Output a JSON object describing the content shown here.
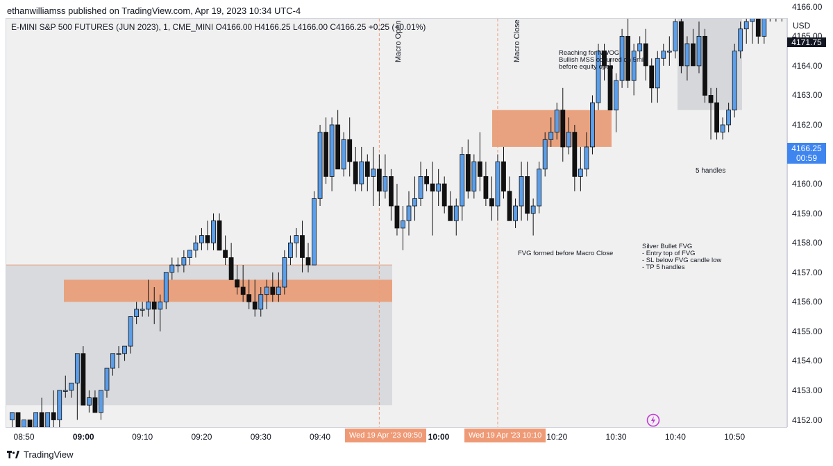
{
  "publisher": "ethanwilliamss published on TradingView.com, Apr 19, 2023 10:34 UTC-4",
  "symbol_info": "E-MINI S&P 500 FUTURES (JUN 2023), 1, CME_MINI  O4166.00  H4166.25  L4166.00  C4166.25  +0.25 (+0.01%)",
  "currency": "USD",
  "footer_brand": "TradingView",
  "colors": {
    "bull": "#5b9ee9",
    "bear": "#111111",
    "fvg": "#e9a27f",
    "zone": "#d6d7db",
    "macro_line": "#ef9a76",
    "price_tag": "#3e85ef"
  },
  "annotations": {
    "macro_open": "Macro Open",
    "macro_close": "Macro Close",
    "nwog_note": [
      "Reaching for NWOG",
      "Bullish MSS occurred on 5min",
      "before equity open"
    ],
    "fvg_note": "FVG formed before Macro Close",
    "silver_bullet": [
      "Silver Bullet FVG",
      "- Entry top of FVG",
      "- SL below FVG candle low",
      "- TP 5 handles"
    ],
    "target_box": "5 handles"
  },
  "flags": [
    "Wed 19 Apr '23   09:50",
    "Wed 19 Apr '23   10:10"
  ],
  "price_tags": {
    "level": "4171.75",
    "last": "4166.25",
    "countdown": "00:59"
  },
  "chart_data": {
    "type": "candlestick",
    "title": "E-MINI S&P 500 FUTURES (JUN 2023), 1, CME_MINI",
    "ylim": [
      4151.5,
      4173
    ],
    "y_ticks": [
      "4152.00",
      "4153.00",
      "4154.00",
      "4155.00",
      "4156.00",
      "4157.00",
      "4158.00",
      "4159.00",
      "4160.00",
      "4161.00",
      "4162.00",
      "4163.00",
      "4164.00",
      "4165.00",
      "4166.00",
      "4167.00",
      "4168.00",
      "4169.00",
      "4170.00",
      "4171.00",
      "4172.00"
    ],
    "x_ticks": [
      "08:50",
      "09:00",
      "09:10",
      "09:20",
      "09:30",
      "09:40",
      "09:50",
      "10:00",
      "10:10",
      "10:20",
      "10:30",
      "10:40",
      "10:50"
    ],
    "x_start": "08:48",
    "horizontal_line": 4171.75,
    "ohlc": [
      [
        4152.0,
        4152.25,
        4151.75,
        4152.25
      ],
      [
        4152.25,
        4152.25,
        4151.75,
        4151.75
      ],
      [
        4151.75,
        4152.0,
        4151.75,
        4152.0
      ],
      [
        4152.0,
        4152.0,
        4151.75,
        4151.75
      ],
      [
        4151.75,
        4152.25,
        4151.75,
        4152.25
      ],
      [
        4152.25,
        4152.75,
        4151.75,
        4151.75
      ],
      [
        4151.75,
        4152.25,
        4151.5,
        4152.25
      ],
      [
        4152.25,
        4153.0,
        4151.75,
        4152.0
      ],
      [
        4152.0,
        4153.0,
        4151.75,
        4153.0
      ],
      [
        4153.0,
        4153.5,
        4152.75,
        4153.0
      ],
      [
        4153.0,
        4153.25,
        4152.75,
        4153.25
      ],
      [
        4153.25,
        4154.25,
        4152.0,
        4154.25
      ],
      [
        4154.25,
        4154.5,
        4152.5,
        4152.5
      ],
      [
        4152.5,
        4153.0,
        4152.25,
        4152.75
      ],
      [
        4152.75,
        4153.0,
        4152.25,
        4152.25
      ],
      [
        4152.25,
        4153.0,
        4152.0,
        4153.0
      ],
      [
        4153.0,
        4153.75,
        4152.75,
        4153.75
      ],
      [
        4153.75,
        4154.25,
        4153.5,
        4154.25
      ],
      [
        4154.25,
        4154.5,
        4153.75,
        4154.25
      ],
      [
        4154.25,
        4154.5,
        4154.0,
        4154.5
      ],
      [
        4154.5,
        4155.5,
        4154.25,
        4155.5
      ],
      [
        4155.5,
        4156.0,
        4155.25,
        4155.75
      ],
      [
        4155.75,
        4156.0,
        4155.5,
        4155.75
      ],
      [
        4155.75,
        4156.75,
        4155.5,
        4156.0
      ],
      [
        4156.0,
        4156.5,
        4155.25,
        4155.75
      ],
      [
        4155.75,
        4156.25,
        4155.0,
        4156.0
      ],
      [
        4156.0,
        4157.0,
        4155.75,
        4157.0
      ],
      [
        4157.0,
        4157.5,
        4156.75,
        4157.25
      ],
      [
        4157.25,
        4157.5,
        4157.0,
        4157.25
      ],
      [
        4157.25,
        4157.75,
        4157.0,
        4157.5
      ],
      [
        4157.5,
        4157.75,
        4157.25,
        4157.75
      ],
      [
        4157.75,
        4158.25,
        4157.5,
        4158.0
      ],
      [
        4158.0,
        4158.5,
        4157.75,
        4158.25
      ],
      [
        4158.25,
        4158.75,
        4157.75,
        4158.0
      ],
      [
        4158.0,
        4159.0,
        4157.75,
        4158.75
      ],
      [
        4158.75,
        4159.0,
        4157.75,
        4157.75
      ],
      [
        4157.75,
        4158.25,
        4157.25,
        4157.5
      ],
      [
        4157.5,
        4158.0,
        4156.75,
        4156.75
      ],
      [
        4156.75,
        4157.25,
        4156.25,
        4156.5
      ],
      [
        4156.5,
        4157.25,
        4156.0,
        4156.25
      ],
      [
        4156.25,
        4156.75,
        4155.75,
        4156.0
      ],
      [
        4156.0,
        4156.75,
        4155.5,
        4155.75
      ],
      [
        4155.75,
        4156.5,
        4155.5,
        4156.25
      ],
      [
        4156.25,
        4156.75,
        4155.75,
        4156.5
      ],
      [
        4156.5,
        4157.0,
        4156.0,
        4156.25
      ],
      [
        4156.25,
        4157.0,
        4156.0,
        4156.5
      ],
      [
        4156.5,
        4157.75,
        4156.25,
        4157.5
      ],
      [
        4157.5,
        4158.25,
        4157.25,
        4158.0
      ],
      [
        4158.0,
        4158.5,
        4157.5,
        4158.25
      ],
      [
        4158.25,
        4158.75,
        4157.0,
        4157.5
      ],
      [
        4157.5,
        4158.0,
        4157.0,
        4157.25
      ],
      [
        4157.25,
        4159.75,
        4157.25,
        4159.5
      ],
      [
        4159.5,
        4162.0,
        4159.25,
        4161.75
      ],
      [
        4161.75,
        4162.25,
        4160.0,
        4160.25
      ],
      [
        4160.25,
        4162.25,
        4159.75,
        4162.0
      ],
      [
        4162.0,
        4162.5,
        4160.5,
        4160.5
      ],
      [
        4160.5,
        4161.75,
        4160.25,
        4161.5
      ],
      [
        4161.5,
        4162.25,
        4160.25,
        4160.75
      ],
      [
        4160.75,
        4161.25,
        4159.75,
        4160.0
      ],
      [
        4160.0,
        4161.25,
        4159.75,
        4160.75
      ],
      [
        4160.75,
        4161.0,
        4159.75,
        4160.25
      ],
      [
        4160.25,
        4161.25,
        4159.25,
        4160.5
      ],
      [
        4160.5,
        4161.0,
        4159.25,
        4159.75
      ],
      [
        4159.75,
        4161.0,
        4159.5,
        4160.25
      ],
      [
        4160.25,
        4160.5,
        4158.75,
        4159.25
      ],
      [
        4159.25,
        4160.0,
        4158.25,
        4158.5
      ],
      [
        4158.5,
        4159.25,
        4157.75,
        4158.75
      ],
      [
        4158.75,
        4159.75,
        4158.25,
        4159.25
      ],
      [
        4159.25,
        4160.25,
        4158.75,
        4159.5
      ],
      [
        4159.5,
        4160.75,
        4159.25,
        4160.25
      ],
      [
        4160.25,
        4160.5,
        4159.75,
        4160.0
      ],
      [
        4160.0,
        4160.75,
        4158.25,
        4159.75
      ],
      [
        4159.75,
        4160.5,
        4159.25,
        4160.0
      ],
      [
        4160.0,
        4160.25,
        4159.0,
        4159.25
      ],
      [
        4159.25,
        4159.75,
        4158.75,
        4158.75
      ],
      [
        4158.75,
        4159.5,
        4158.25,
        4159.25
      ],
      [
        4159.25,
        4161.25,
        4158.75,
        4161.0
      ],
      [
        4161.0,
        4161.5,
        4159.5,
        4159.75
      ],
      [
        4159.75,
        4161.0,
        4159.5,
        4160.75
      ],
      [
        4160.75,
        4161.75,
        4159.75,
        4160.25
      ],
      [
        4160.25,
        4160.75,
        4159.25,
        4159.5
      ],
      [
        4159.5,
        4160.25,
        4158.75,
        4159.25
      ],
      [
        4159.25,
        4161.0,
        4158.75,
        4160.75
      ],
      [
        4160.75,
        4161.25,
        4159.5,
        4159.75
      ],
      [
        4159.75,
        4160.25,
        4158.75,
        4158.75
      ],
      [
        4158.75,
        4159.5,
        4158.5,
        4159.25
      ],
      [
        4159.25,
        4160.75,
        4158.75,
        4160.25
      ],
      [
        4160.25,
        4160.75,
        4158.75,
        4159.0
      ],
      [
        4159.0,
        4159.5,
        4158.25,
        4159.25
      ],
      [
        4159.25,
        4160.75,
        4159.0,
        4160.5
      ],
      [
        4160.5,
        4161.75,
        4160.25,
        4161.5
      ],
      [
        4161.5,
        4162.25,
        4161.25,
        4161.75
      ],
      [
        4161.75,
        4162.75,
        4161.5,
        4162.5
      ],
      [
        4162.5,
        4163.25,
        4160.75,
        4161.25
      ],
      [
        4161.25,
        4162.25,
        4161.0,
        4161.75
      ],
      [
        4161.75,
        4162.0,
        4159.75,
        4160.25
      ],
      [
        4160.25,
        4161.25,
        4159.75,
        4160.5
      ],
      [
        4160.5,
        4161.75,
        4160.25,
        4161.25
      ],
      [
        4161.25,
        4163.0,
        4161.0,
        4162.75
      ],
      [
        4162.75,
        4164.75,
        4162.5,
        4164.5
      ],
      [
        4164.5,
        4164.75,
        4163.5,
        4164.0
      ],
      [
        4164.0,
        4164.25,
        4162.5,
        4162.5
      ],
      [
        4162.5,
        4163.75,
        4161.75,
        4163.5
      ],
      [
        4163.5,
        4165.25,
        4163.25,
        4165.0
      ],
      [
        4165.0,
        4167.25,
        4163.25,
        4163.5
      ],
      [
        4163.5,
        4164.75,
        4163.0,
        4164.5
      ],
      [
        4164.5,
        4165.0,
        4164.25,
        4164.75
      ],
      [
        4164.75,
        4165.25,
        4163.5,
        4164.0
      ],
      [
        4164.0,
        4164.25,
        4162.75,
        4163.25
      ],
      [
        4163.25,
        4164.5,
        4162.75,
        4164.25
      ],
      [
        4164.25,
        4164.75,
        4164.0,
        4164.5
      ],
      [
        4164.5,
        4165.0,
        4164.0,
        4164.5
      ],
      [
        4164.5,
        4165.75,
        4164.25,
        4165.5
      ],
      [
        4165.5,
        4165.75,
        4163.75,
        4164.0
      ],
      [
        4164.0,
        4165.0,
        4163.5,
        4164.75
      ],
      [
        4164.75,
        4165.25,
        4164.0,
        4164.0
      ],
      [
        4164.0,
        4165.5,
        4163.75,
        4165.0
      ],
      [
        4165.0,
        4165.25,
        4162.75,
        4163.0
      ],
      [
        4163.0,
        4163.25,
        4161.5,
        4162.75
      ],
      [
        4162.75,
        4163.25,
        4161.5,
        4161.75
      ],
      [
        4161.75,
        4162.25,
        4161.5,
        4162.0
      ],
      [
        4162.0,
        4162.75,
        4161.75,
        4162.5
      ],
      [
        4162.5,
        4164.75,
        4162.25,
        4164.5
      ],
      [
        4164.5,
        4165.5,
        4164.25,
        4165.25
      ],
      [
        4165.25,
        4165.75,
        4164.75,
        4165.5
      ],
      [
        4165.5,
        4166.25,
        4164.75,
        4165.75
      ],
      [
        4165.75,
        4166.25,
        4164.75,
        4165.0
      ],
      [
        4165.0,
        4166.0,
        4164.75,
        4165.75
      ],
      [
        4165.75,
        4168.0,
        4165.5,
        4167.0
      ],
      [
        4167.0,
        4167.25,
        4165.5,
        4165.75
      ],
      [
        4165.75,
        4166.25,
        4165.5,
        4166.25
      ],
      [
        4166.0,
        4166.25,
        4166.0,
        4166.25
      ]
    ]
  }
}
